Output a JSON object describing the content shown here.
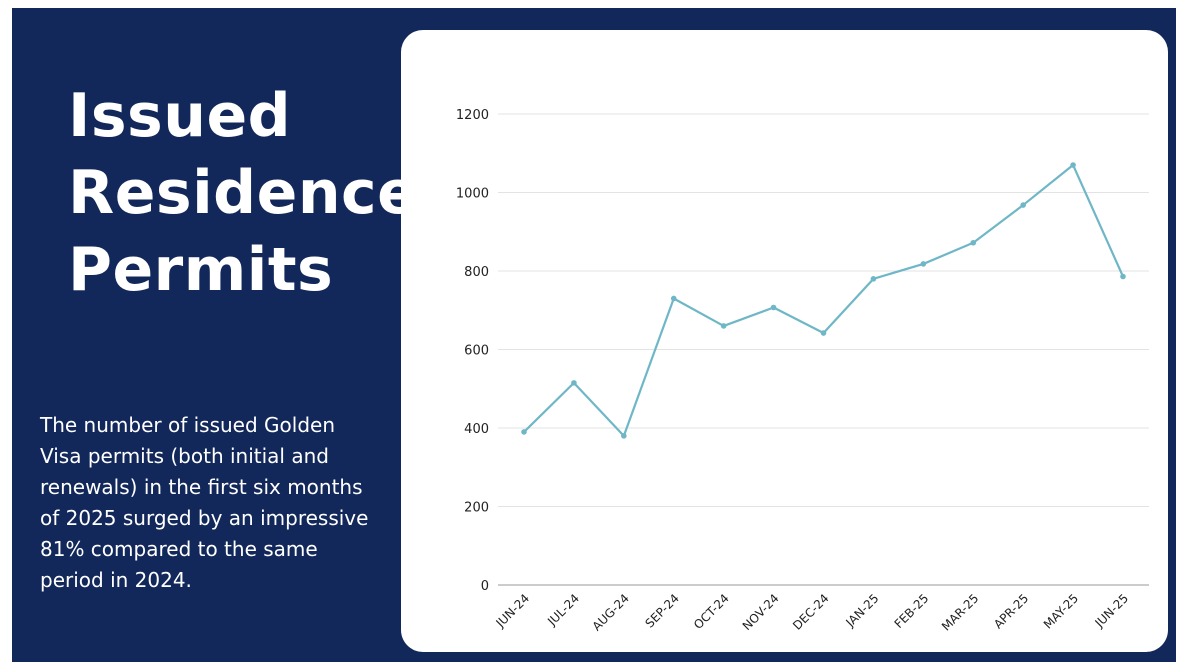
{
  "title_lines": [
    "Issued",
    "Residence",
    "Permits"
  ],
  "description": "The number of issued Golden Visa permits (both initial and renewals) in the first six months of 2025 surged by an impressive 81% compared to the same period in 2024.",
  "colors": {
    "background": "#13285a",
    "card": "#ffffff",
    "line": "#6fb7c6",
    "grid": "#e3e3e3"
  },
  "chart_data": {
    "type": "line",
    "title": "",
    "xlabel": "",
    "ylabel": "",
    "categories": [
      "JUN-24",
      "JUL-24",
      "AUG-24",
      "SEP-24",
      "OCT-24",
      "NOV-24",
      "DEC-24",
      "JAN-25",
      "FEB-25",
      "MAR-25",
      "APR-25",
      "MAY-25",
      "JUN-25"
    ],
    "series": [
      {
        "values": [
          390,
          515,
          380,
          730,
          660,
          707,
          642,
          780,
          818,
          872,
          968,
          1070,
          786
        ]
      }
    ],
    "ylim": [
      0,
      1200
    ],
    "yticks": [
      0,
      200,
      400,
      600,
      800,
      1000,
      1200
    ],
    "grid": true,
    "legend": "none"
  }
}
